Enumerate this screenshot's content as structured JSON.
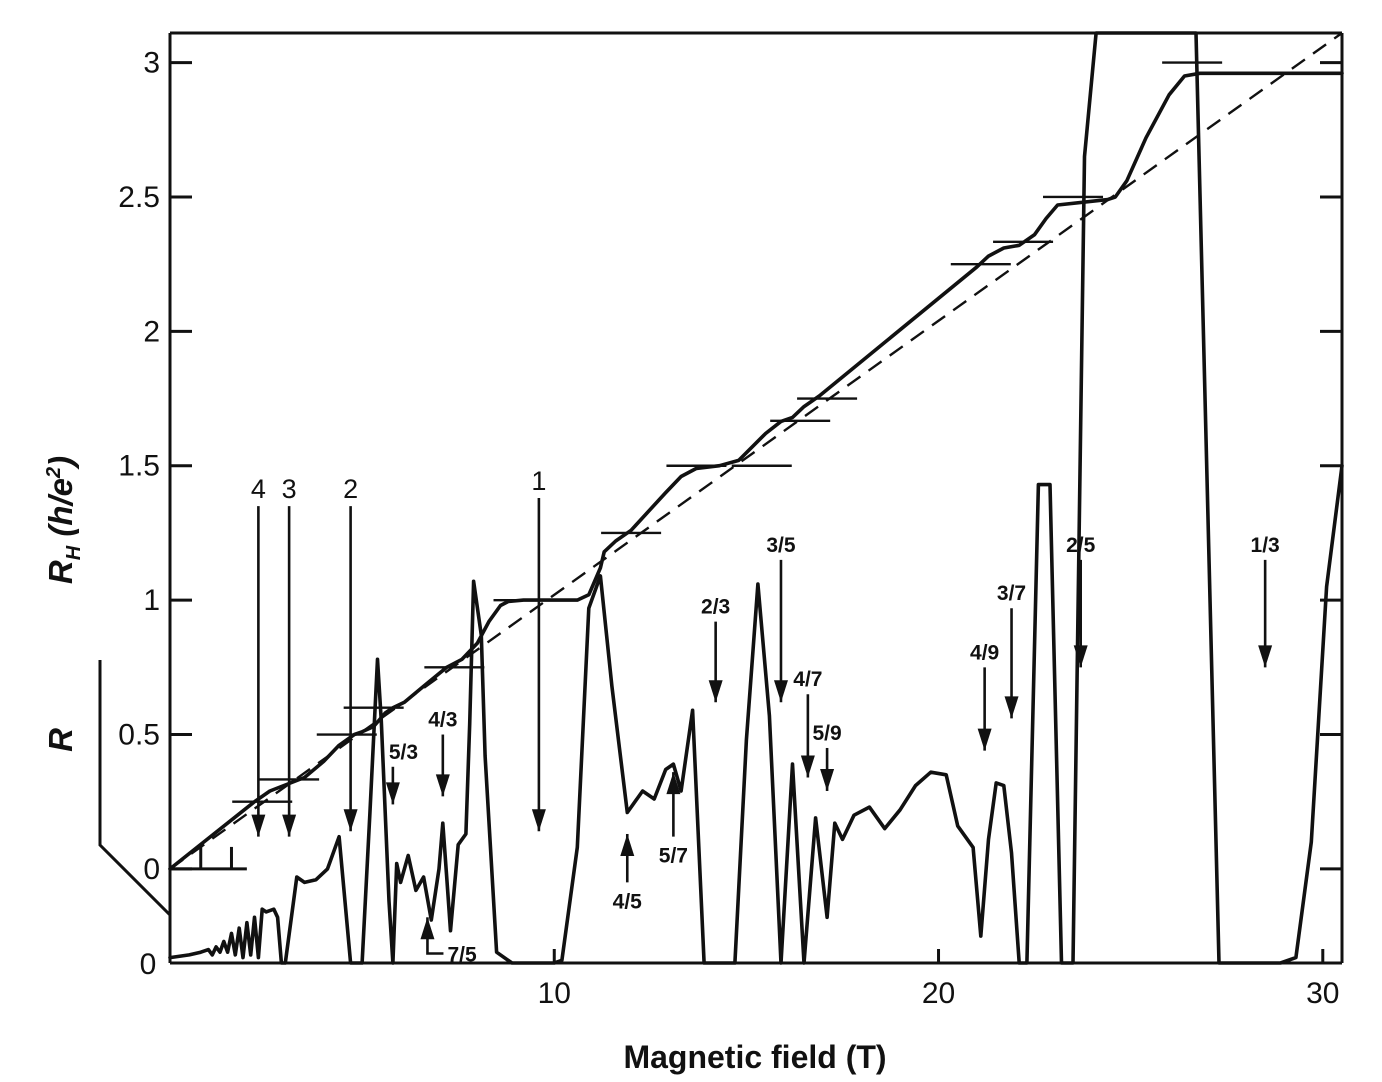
{
  "chart_data": {
    "type": "line",
    "xlabel": "Magnetic field (T)",
    "ylabel_main": "R",
    "ylabel_sub": "H",
    "ylabel_rest": " (h/e",
    "ylabel_sup": "2",
    "ylabel_close": ")",
    "ylabel_secondary": "R",
    "xlim": [
      0,
      30.5
    ],
    "ylim": [
      -0.35,
      3.11
    ],
    "x_ticks": [
      10,
      20,
      30
    ],
    "x_tick_labels": [
      "10",
      "20",
      "30"
    ],
    "y_ticks": [
      0,
      0.5,
      1,
      1.5,
      2,
      2.5,
      3
    ],
    "y_tick_labels": [
      "0",
      "0.5",
      "1",
      "1.5",
      "2",
      "2.5",
      "3"
    ],
    "r_axis": {
      "zero_label": "0"
    },
    "series": [
      {
        "role": "hall_resistance",
        "x": [
          0,
          2.2,
          2.4,
          2.6,
          3.5,
          4.0,
          4.4,
          4.8,
          5.0,
          5.3,
          5.6,
          5.8,
          6.1,
          6.6,
          7.2,
          7.6,
          8.0,
          8.3,
          8.6,
          8.8,
          9.2,
          10.0,
          10.6,
          10.9,
          11.2,
          11.3,
          11.6,
          12.0,
          12.9,
          13.3,
          13.7,
          14.3,
          14.8,
          15.5,
          15.9,
          16.2,
          16.5,
          16.9,
          21.0,
          21.3,
          21.7,
          22.1,
          22.5,
          22.8,
          23.1,
          24.4,
          24.6,
          24.9,
          25.4,
          26.0,
          26.4,
          26.8,
          27.3,
          30.5
        ],
        "y": [
          0,
          0.25,
          0.27,
          0.29,
          0.34,
          0.4,
          0.46,
          0.5,
          0.51,
          0.53,
          0.58,
          0.6,
          0.62,
          0.68,
          0.75,
          0.78,
          0.84,
          0.92,
          0.98,
          0.995,
          1.0,
          1.0,
          1.0,
          1.02,
          1.12,
          1.18,
          1.22,
          1.26,
          1.4,
          1.46,
          1.49,
          1.5,
          1.52,
          1.62,
          1.665,
          1.68,
          1.72,
          1.76,
          2.24,
          2.28,
          2.31,
          2.32,
          2.36,
          2.42,
          2.47,
          2.49,
          2.5,
          2.56,
          2.72,
          2.88,
          2.95,
          2.96,
          2.96,
          2.96
        ]
      },
      {
        "role": "longitudinal_resistance",
        "x": [
          0,
          0.5,
          0.8,
          1.0,
          1.1,
          1.2,
          1.3,
          1.4,
          1.5,
          1.6,
          1.7,
          1.8,
          1.9,
          2.0,
          2.1,
          2.2,
          2.3,
          2.4,
          2.5,
          2.7,
          2.8,
          2.9,
          3.0,
          3.3,
          3.5,
          3.8,
          4.1,
          4.4,
          4.7,
          4.8,
          5.0,
          5.2,
          5.4,
          5.5,
          5.7,
          5.8,
          5.9,
          6.0,
          6.2,
          6.4,
          6.6,
          6.8,
          7.0,
          7.1,
          7.2,
          7.3,
          7.5,
          7.7,
          7.8,
          7.9,
          8.1,
          8.2,
          8.5,
          8.9,
          9.3,
          9.6,
          10.0,
          10.2,
          10.6,
          10.9,
          11.2,
          11.5,
          11.9,
          12.3,
          12.6,
          12.9,
          13.1,
          13.3,
          13.6,
          13.9,
          14.3,
          14.7,
          15.0,
          15.3,
          15.6,
          15.9,
          16.2,
          16.5,
          16.8,
          17.1,
          17.3,
          17.5,
          17.8,
          18.2,
          18.6,
          19.0,
          19.4,
          19.8,
          20.2,
          20.5,
          20.9,
          21.1,
          21.3,
          21.5,
          21.7,
          21.9,
          22.1,
          22.3,
          22.6,
          22.9,
          23.2,
          23.5,
          23.8,
          24.1,
          24.6,
          25.0,
          26.0,
          26.7,
          27.3,
          27.7,
          28.1,
          28.5,
          28.9,
          29.3,
          29.7,
          30.1,
          30.5
        ],
        "y": [
          -0.33,
          -0.32,
          -0.31,
          -0.3,
          -0.32,
          -0.29,
          -0.31,
          -0.27,
          -0.31,
          -0.24,
          -0.32,
          -0.22,
          -0.33,
          -0.2,
          -0.32,
          -0.18,
          -0.33,
          -0.15,
          -0.16,
          -0.15,
          -0.18,
          -0.35,
          -0.35,
          -0.03,
          -0.05,
          -0.04,
          0.0,
          0.12,
          -0.35,
          -0.35,
          -0.35,
          0.2,
          0.78,
          0.55,
          -0.12,
          -0.35,
          0.02,
          -0.05,
          0.05,
          -0.08,
          -0.03,
          -0.19,
          0.0,
          0.17,
          -0.03,
          -0.23,
          0.09,
          0.13,
          0.54,
          1.07,
          0.87,
          0.42,
          -0.31,
          -0.35,
          -0.35,
          -0.35,
          -0.35,
          -0.34,
          0.08,
          0.97,
          1.09,
          0.68,
          0.21,
          0.29,
          0.26,
          0.37,
          0.39,
          0.29,
          0.59,
          -0.35,
          -0.35,
          -0.35,
          0.48,
          1.06,
          0.57,
          -0.35,
          0.39,
          -0.35,
          0.19,
          -0.18,
          0.17,
          0.11,
          0.2,
          0.23,
          0.15,
          0.22,
          0.31,
          0.36,
          0.35,
          0.16,
          0.08,
          -0.25,
          0.11,
          0.32,
          0.31,
          0.06,
          -0.35,
          -0.35,
          1.43,
          1.43,
          -0.35,
          -0.35,
          2.65,
          3.11,
          3.11,
          3.11,
          3.11,
          3.11,
          -0.35,
          -0.35,
          -0.35,
          -0.35,
          -0.35,
          -0.33,
          0.1,
          1.05,
          1.5
        ]
      },
      {
        "role": "classical_hall_line",
        "x": [
          0,
          30.5
        ],
        "y": [
          0,
          3.11
        ]
      }
    ],
    "plateau_markers": [
      {
        "x": 2.4,
        "y": 0.25
      },
      {
        "x": 3.1,
        "y": 0.333
      },
      {
        "x": 4.6,
        "y": 0.5
      },
      {
        "x": 5.3,
        "y": 0.6
      },
      {
        "x": 7.4,
        "y": 0.75
      },
      {
        "x": 9.2,
        "y": 1.0
      },
      {
        "x": 12.0,
        "y": 1.25
      },
      {
        "x": 13.7,
        "y": 1.5
      },
      {
        "x": 15.4,
        "y": 1.5
      },
      {
        "x": 16.4,
        "y": 1.667
      },
      {
        "x": 17.1,
        "y": 1.75
      },
      {
        "x": 21.1,
        "y": 2.25
      },
      {
        "x": 22.2,
        "y": 2.333
      },
      {
        "x": 23.5,
        "y": 2.5
      },
      {
        "x": 26.6,
        "y": 3.0
      }
    ],
    "arrows": [
      {
        "label": "4",
        "x": 2.3,
        "y_from": 1.35,
        "y_to": 0.12,
        "direction": "down",
        "label_at": "top",
        "style": "int"
      },
      {
        "label": "3",
        "x": 3.1,
        "y_from": 1.35,
        "y_to": 0.12,
        "direction": "down",
        "label_at": "top",
        "style": "int"
      },
      {
        "label": "2",
        "x": 4.7,
        "y_from": 1.35,
        "y_to": 0.14,
        "direction": "down",
        "label_at": "top",
        "style": "int"
      },
      {
        "label": "1",
        "x": 9.6,
        "y_from": 1.38,
        "y_to": 0.14,
        "direction": "down",
        "label_at": "top",
        "style": "int"
      },
      {
        "label": "5/3",
        "x": 5.8,
        "y_from": 0.38,
        "y_to": 0.24,
        "direction": "down",
        "label_at": "top-right",
        "style": "frac"
      },
      {
        "label": "4/3",
        "x": 7.1,
        "y_from": 0.5,
        "y_to": 0.27,
        "direction": "down",
        "label_at": "top",
        "style": "frac"
      },
      {
        "label": "7/5",
        "x": 6.7,
        "y_from": -0.27,
        "y_to": -0.18,
        "direction": "up",
        "label_at": "bottom-right",
        "style": "frac"
      },
      {
        "label": "4/5",
        "x": 11.9,
        "y_from": -0.05,
        "y_to": 0.13,
        "direction": "up",
        "label_at": "bottom",
        "style": "frac"
      },
      {
        "label": "5/7",
        "x": 13.1,
        "y_from": 0.12,
        "y_to": 0.36,
        "direction": "up",
        "label_at": "bottom",
        "style": "frac"
      },
      {
        "label": "2/3",
        "x": 14.2,
        "y_from": 0.92,
        "y_to": 0.62,
        "direction": "down",
        "label_at": "top",
        "style": "frac"
      },
      {
        "label": "3/5",
        "x": 15.9,
        "y_from": 1.15,
        "y_to": 0.62,
        "direction": "down",
        "label_at": "top",
        "style": "frac"
      },
      {
        "label": "4/7",
        "x": 16.6,
        "y_from": 0.65,
        "y_to": 0.34,
        "direction": "down",
        "label_at": "top",
        "style": "frac"
      },
      {
        "label": "5/9",
        "x": 17.1,
        "y_from": 0.45,
        "y_to": 0.29,
        "direction": "down",
        "label_at": "top",
        "style": "frac"
      },
      {
        "label": "4/9",
        "x": 21.2,
        "y_from": 0.75,
        "y_to": 0.44,
        "direction": "down",
        "label_at": "top",
        "style": "frac"
      },
      {
        "label": "3/7",
        "x": 21.9,
        "y_from": 0.97,
        "y_to": 0.56,
        "direction": "down",
        "label_at": "top",
        "style": "frac"
      },
      {
        "label": "2/5",
        "x": 23.7,
        "y_from": 1.15,
        "y_to": 0.75,
        "direction": "down",
        "label_at": "top",
        "style": "frac"
      },
      {
        "label": "1/3",
        "x": 28.5,
        "y_from": 1.15,
        "y_to": 0.75,
        "direction": "down",
        "label_at": "top",
        "style": "frac"
      }
    ],
    "grid": false,
    "legend": "none"
  }
}
